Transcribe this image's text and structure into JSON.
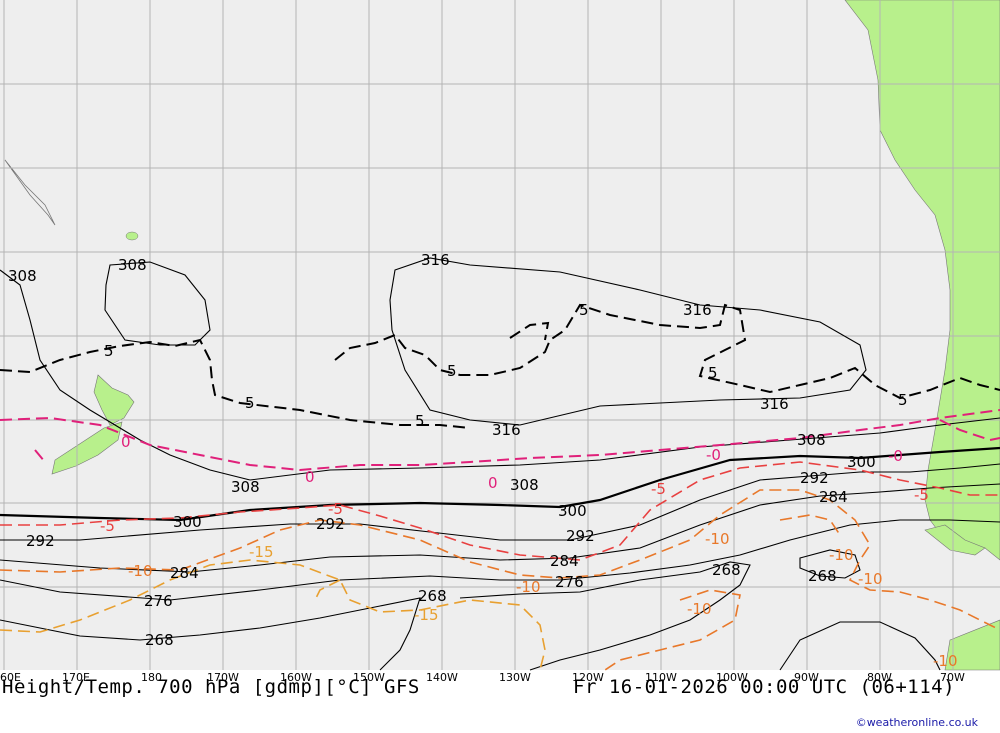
{
  "map": {
    "title": "Height/Temp. 700 hPa [gdmp][°C] GFS",
    "valid_time": "Fr 16-01-2026 00:00 UTC (06+114)",
    "credit": "©weatheronline.co.uk",
    "longitude_labels": [
      "60E",
      "170E",
      "180",
      "170W",
      "160W",
      "150W",
      "140W",
      "130W",
      "120W",
      "110W",
      "100W",
      "90W",
      "80W",
      "70W"
    ],
    "height_labels": [
      {
        "id": "h308a",
        "text": "308"
      },
      {
        "id": "h308b",
        "text": "308"
      },
      {
        "id": "h316a",
        "text": "316"
      },
      {
        "id": "h316b",
        "text": "316"
      },
      {
        "id": "h316c",
        "text": "316"
      },
      {
        "id": "h316d",
        "text": "316"
      },
      {
        "id": "h308c",
        "text": "308"
      },
      {
        "id": "h308d",
        "text": "308"
      },
      {
        "id": "h308e",
        "text": "308"
      },
      {
        "id": "h300a",
        "text": "300"
      },
      {
        "id": "h300b",
        "text": "300"
      },
      {
        "id": "h300c",
        "text": "300"
      },
      {
        "id": "h292a",
        "text": "292"
      },
      {
        "id": "h292b",
        "text": "292"
      },
      {
        "id": "h292c",
        "text": "292"
      },
      {
        "id": "h292d",
        "text": "292"
      },
      {
        "id": "h284a",
        "text": "284"
      },
      {
        "id": "h284b",
        "text": "284"
      },
      {
        "id": "h284c",
        "text": "284"
      },
      {
        "id": "h276a",
        "text": "276"
      },
      {
        "id": "h276b",
        "text": "276"
      },
      {
        "id": "h268a",
        "text": "268"
      },
      {
        "id": "h268b",
        "text": "268"
      },
      {
        "id": "h268c",
        "text": "268"
      },
      {
        "id": "h268d",
        "text": "268"
      }
    ],
    "temp_labels": [
      {
        "id": "t5a",
        "text": "5",
        "color": "#000000"
      },
      {
        "id": "t5b",
        "text": "5",
        "color": "#000000"
      },
      {
        "id": "t5c",
        "text": "5",
        "color": "#000000"
      },
      {
        "id": "t5d",
        "text": "5",
        "color": "#000000"
      },
      {
        "id": "t5e",
        "text": "5",
        "color": "#000000"
      },
      {
        "id": "t5f",
        "text": "5",
        "color": "#000000"
      },
      {
        "id": "t5g",
        "text": "5",
        "color": "#000000"
      },
      {
        "id": "t0a",
        "text": "0",
        "color": "#e0207a"
      },
      {
        "id": "t0b",
        "text": "0",
        "color": "#e0207a"
      },
      {
        "id": "t0c",
        "text": "0",
        "color": "#e0207a"
      },
      {
        "id": "t0d",
        "text": "-0",
        "color": "#e0207a"
      },
      {
        "id": "t0e",
        "text": "-0",
        "color": "#e0207a"
      },
      {
        "id": "tm5a",
        "text": "-5",
        "color": "#e84040"
      },
      {
        "id": "tm5b",
        "text": "-5",
        "color": "#e84040"
      },
      {
        "id": "tm5c",
        "text": "-5",
        "color": "#e84040"
      },
      {
        "id": "tm5d",
        "text": "-5",
        "color": "#e84040"
      },
      {
        "id": "tm10a",
        "text": "-10",
        "color": "#e8782a"
      },
      {
        "id": "tm10b",
        "text": "-10",
        "color": "#e8782a"
      },
      {
        "id": "tm10c",
        "text": "-10",
        "color": "#e8782a"
      },
      {
        "id": "tm10d",
        "text": "-10",
        "color": "#e8782a"
      },
      {
        "id": "tm10e",
        "text": "-10",
        "color": "#e8782a"
      },
      {
        "id": "tm10f",
        "text": "-10",
        "color": "#e8782a"
      },
      {
        "id": "tm10g",
        "text": "-10",
        "color": "#e8782a"
      },
      {
        "id": "tm15a",
        "text": "-15",
        "color": "#e8a030"
      },
      {
        "id": "tm15b",
        "text": "-15",
        "color": "#e8a030"
      }
    ],
    "colors": {
      "ocean": "#eeeeee",
      "land": "#b8f08c",
      "grid": "#b4b4b4",
      "height_contour": "#000000",
      "temp_plus5": "#000000",
      "temp_zero": "#e0207a",
      "temp_minus5": "#e84040",
      "temp_minus10": "#e8782a",
      "temp_minus15": "#e8a030"
    }
  }
}
